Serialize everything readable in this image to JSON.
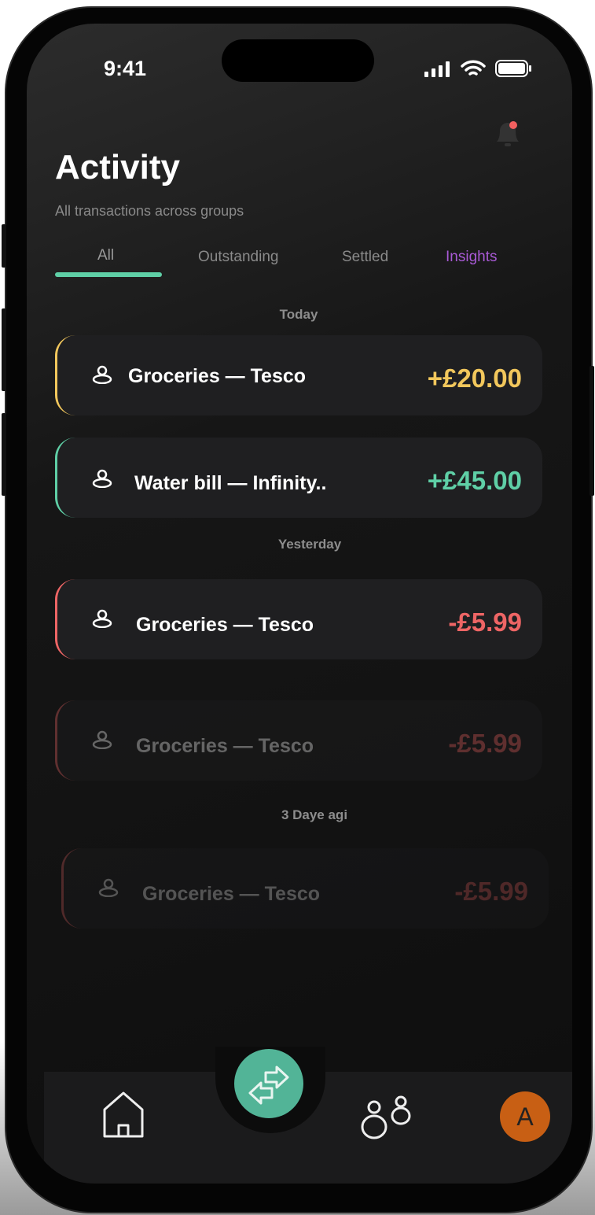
{
  "status_bar": {
    "time": "9:41"
  },
  "header": {
    "title": "Activity",
    "subtitle": "All transactions across groups"
  },
  "tabs": [
    {
      "label": "All",
      "active": true
    },
    {
      "label": "Outstanding"
    },
    {
      "label": "Settled"
    },
    {
      "label": "Insights",
      "color": "#a95ad6"
    }
  ],
  "sections": {
    "today": "Today",
    "yesterday": "Yesterday",
    "older": "3  Daye agi"
  },
  "transactions": [
    {
      "name": "Groceries — Tesco",
      "amount": "+£20.00",
      "color": "#f2c75c"
    },
    {
      "name": "Water bill — Infinity..",
      "amount": "+£45.00",
      "color": "#5fcfa6"
    },
    {
      "name": "Groceries — Tesco",
      "amount": "-£5.99",
      "color": "#ee6565"
    },
    {
      "name": "Groceries — Tesco",
      "amount": "-£5.99",
      "color": "#ee6565"
    },
    {
      "name": "Groceries — Tesco",
      "amount": "-£5.99",
      "color": "#ee6565"
    }
  ],
  "nav": {
    "avatar_initial": "A",
    "accent": "#52b497",
    "avatar_color": "#c85f14"
  },
  "notification": {
    "has_unread": true,
    "dot_color": "#f26060"
  }
}
